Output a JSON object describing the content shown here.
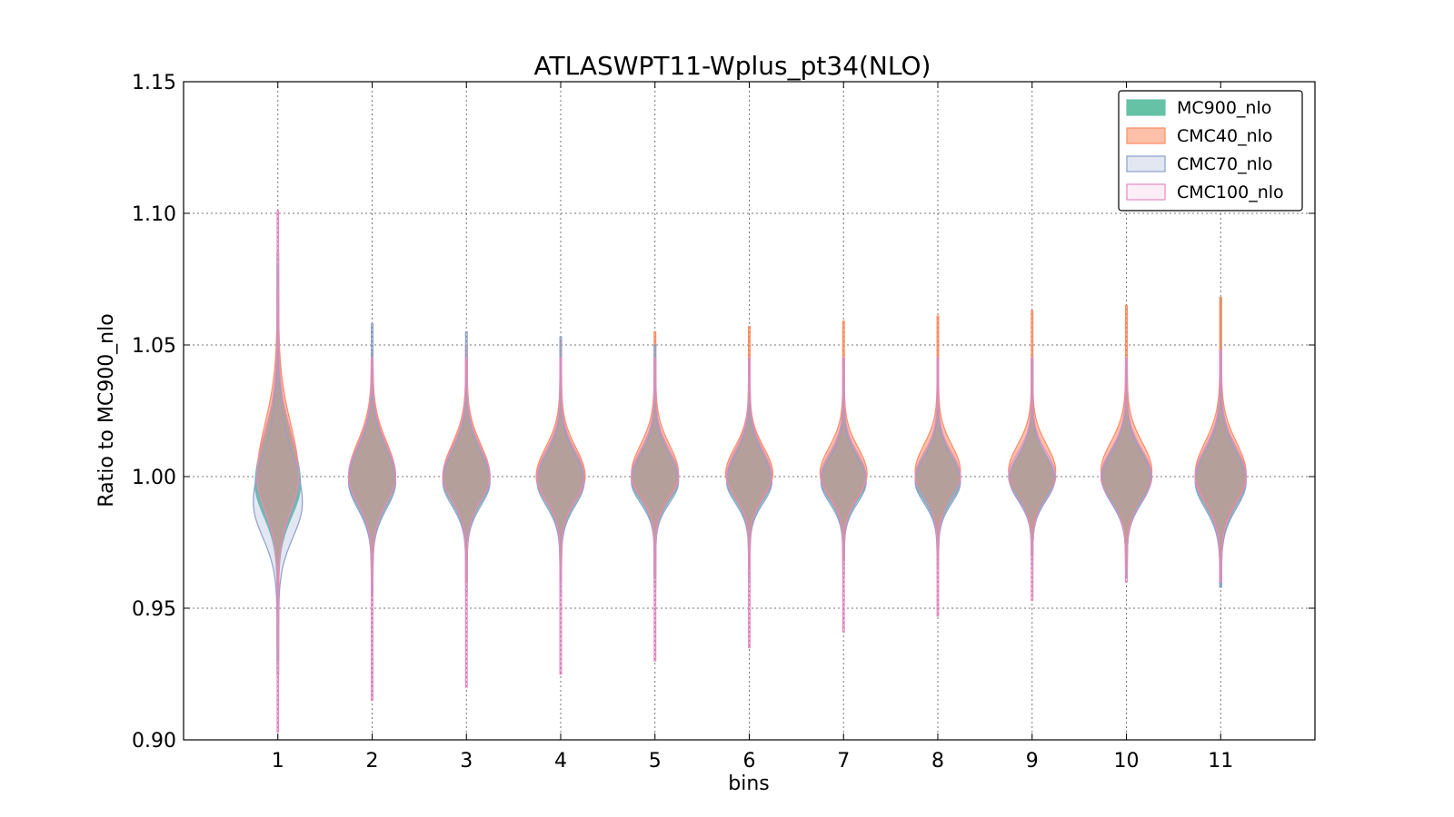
{
  "chart_data": {
    "type": "violin",
    "title": "ATLASWPT11-Wplus_pt34(NLO)",
    "xlabel": "bins",
    "ylabel": "Ratio to MC900_nlo",
    "ylim": [
      0.9,
      1.15
    ],
    "xlim": [
      0,
      12
    ],
    "yticks": [
      "0.90",
      "0.95",
      "1.00",
      "1.05",
      "1.10",
      "1.15"
    ],
    "xticks": [
      "1",
      "2",
      "3",
      "4",
      "5",
      "6",
      "7",
      "8",
      "9",
      "10",
      "11"
    ],
    "grid": true,
    "legend_position": "top-right",
    "series": [
      {
        "name": "MC900_nlo",
        "fill": "#66c2a5",
        "fill_opacity": 1.0,
        "stroke": "#66c2a5",
        "violins": [
          {
            "bin": 1,
            "min": 0.93,
            "max": 1.08,
            "center": 0.997,
            "halfwidth": 0.24,
            "spread_up": 0.018,
            "spread_down": 0.012
          },
          {
            "bin": 2,
            "min": 0.955,
            "max": 1.045,
            "center": 0.999,
            "halfwidth": 0.25,
            "spread_up": 0.012,
            "spread_down": 0.01
          },
          {
            "bin": 3,
            "min": 0.96,
            "max": 1.045,
            "center": 0.999,
            "halfwidth": 0.25,
            "spread_up": 0.011,
            "spread_down": 0.009
          },
          {
            "bin": 4,
            "min": 0.96,
            "max": 1.045,
            "center": 0.999,
            "halfwidth": 0.25,
            "spread_up": 0.01,
            "spread_down": 0.009
          },
          {
            "bin": 5,
            "min": 0.962,
            "max": 1.045,
            "center": 0.999,
            "halfwidth": 0.25,
            "spread_up": 0.01,
            "spread_down": 0.008
          },
          {
            "bin": 6,
            "min": 0.965,
            "max": 1.045,
            "center": 0.999,
            "halfwidth": 0.24,
            "spread_up": 0.01,
            "spread_down": 0.008
          },
          {
            "bin": 7,
            "min": 0.968,
            "max": 1.045,
            "center": 0.999,
            "halfwidth": 0.24,
            "spread_up": 0.009,
            "spread_down": 0.008
          },
          {
            "bin": 8,
            "min": 0.97,
            "max": 1.045,
            "center": 0.999,
            "halfwidth": 0.24,
            "spread_up": 0.009,
            "spread_down": 0.008
          },
          {
            "bin": 9,
            "min": 0.97,
            "max": 1.045,
            "center": 0.999,
            "halfwidth": 0.24,
            "spread_up": 0.009,
            "spread_down": 0.008
          },
          {
            "bin": 10,
            "min": 0.962,
            "max": 1.045,
            "center": 1.0,
            "halfwidth": 0.27,
            "spread_up": 0.01,
            "spread_down": 0.009
          },
          {
            "bin": 11,
            "min": 0.958,
            "max": 1.068,
            "center": 0.999,
            "halfwidth": 0.27,
            "spread_up": 0.011,
            "spread_down": 0.01
          }
        ]
      },
      {
        "name": "CMC40_nlo",
        "fill": "#fc8d62",
        "fill_opacity": 0.55,
        "stroke": "#fc8d62",
        "violins": [
          {
            "bin": 1,
            "min": 0.935,
            "max": 1.07,
            "center": 1.0,
            "halfwidth": 0.22,
            "spread_up": 0.02,
            "spread_down": 0.013
          },
          {
            "bin": 2,
            "min": 0.96,
            "max": 1.047,
            "center": 1.0,
            "halfwidth": 0.25,
            "spread_up": 0.013,
            "spread_down": 0.01
          },
          {
            "bin": 3,
            "min": 0.96,
            "max": 1.05,
            "center": 1.0,
            "halfwidth": 0.25,
            "spread_up": 0.012,
            "spread_down": 0.009
          },
          {
            "bin": 4,
            "min": 0.96,
            "max": 1.052,
            "center": 1.0,
            "halfwidth": 0.26,
            "spread_up": 0.011,
            "spread_down": 0.009
          },
          {
            "bin": 5,
            "min": 0.963,
            "max": 1.055,
            "center": 1.001,
            "halfwidth": 0.25,
            "spread_up": 0.011,
            "spread_down": 0.008
          },
          {
            "bin": 6,
            "min": 0.965,
            "max": 1.057,
            "center": 1.001,
            "halfwidth": 0.25,
            "spread_up": 0.01,
            "spread_down": 0.008
          },
          {
            "bin": 7,
            "min": 0.968,
            "max": 1.059,
            "center": 1.001,
            "halfwidth": 0.25,
            "spread_up": 0.01,
            "spread_down": 0.008
          },
          {
            "bin": 8,
            "min": 0.97,
            "max": 1.061,
            "center": 1.002,
            "halfwidth": 0.24,
            "spread_up": 0.01,
            "spread_down": 0.008
          },
          {
            "bin": 9,
            "min": 0.97,
            "max": 1.063,
            "center": 1.002,
            "halfwidth": 0.25,
            "spread_up": 0.01,
            "spread_down": 0.008
          },
          {
            "bin": 10,
            "min": 0.965,
            "max": 1.065,
            "center": 1.002,
            "halfwidth": 0.27,
            "spread_up": 0.011,
            "spread_down": 0.009
          },
          {
            "bin": 11,
            "min": 0.96,
            "max": 1.068,
            "center": 1.001,
            "halfwidth": 0.27,
            "spread_up": 0.012,
            "spread_down": 0.01
          }
        ]
      },
      {
        "name": "CMC70_nlo",
        "fill": "#8da0cb",
        "fill_opacity": 0.25,
        "stroke": "#8da0cb",
        "violins": [
          {
            "bin": 1,
            "min": 0.925,
            "max": 1.085,
            "center": 0.99,
            "halfwidth": 0.26,
            "spread_up": 0.018,
            "spread_down": 0.013
          },
          {
            "bin": 2,
            "min": 0.955,
            "max": 1.058,
            "center": 0.998,
            "halfwidth": 0.25,
            "spread_up": 0.012,
            "spread_down": 0.01
          },
          {
            "bin": 3,
            "min": 0.955,
            "max": 1.055,
            "center": 0.998,
            "halfwidth": 0.25,
            "spread_up": 0.011,
            "spread_down": 0.009
          },
          {
            "bin": 4,
            "min": 0.955,
            "max": 1.053,
            "center": 0.998,
            "halfwidth": 0.25,
            "spread_up": 0.01,
            "spread_down": 0.009
          },
          {
            "bin": 5,
            "min": 0.958,
            "max": 1.05,
            "center": 0.998,
            "halfwidth": 0.25,
            "spread_up": 0.01,
            "spread_down": 0.008
          },
          {
            "bin": 6,
            "min": 0.96,
            "max": 1.045,
            "center": 0.998,
            "halfwidth": 0.24,
            "spread_up": 0.01,
            "spread_down": 0.008
          },
          {
            "bin": 7,
            "min": 0.963,
            "max": 1.045,
            "center": 0.998,
            "halfwidth": 0.24,
            "spread_up": 0.009,
            "spread_down": 0.008
          },
          {
            "bin": 8,
            "min": 0.965,
            "max": 1.045,
            "center": 0.998,
            "halfwidth": 0.24,
            "spread_up": 0.009,
            "spread_down": 0.008
          },
          {
            "bin": 9,
            "min": 0.965,
            "max": 1.045,
            "center": 0.999,
            "halfwidth": 0.24,
            "spread_up": 0.009,
            "spread_down": 0.008
          },
          {
            "bin": 10,
            "min": 0.962,
            "max": 1.045,
            "center": 0.999,
            "halfwidth": 0.26,
            "spread_up": 0.01,
            "spread_down": 0.009
          },
          {
            "bin": 11,
            "min": 0.958,
            "max": 1.048,
            "center": 0.998,
            "halfwidth": 0.27,
            "spread_up": 0.011,
            "spread_down": 0.01
          }
        ]
      },
      {
        "name": "CMC100_nlo",
        "fill": "#e78ac3",
        "fill_opacity": 0.15,
        "stroke": "#e78ac3",
        "violins": [
          {
            "bin": 1,
            "min": 0.903,
            "max": 1.101,
            "center": 1.0,
            "halfwidth": 0.22,
            "spread_up": 0.017,
            "spread_down": 0.013
          },
          {
            "bin": 2,
            "min": 0.915,
            "max": 1.045,
            "center": 1.0,
            "halfwidth": 0.25,
            "spread_up": 0.012,
            "spread_down": 0.01
          },
          {
            "bin": 3,
            "min": 0.92,
            "max": 1.045,
            "center": 1.0,
            "halfwidth": 0.25,
            "spread_up": 0.011,
            "spread_down": 0.009
          },
          {
            "bin": 4,
            "min": 0.925,
            "max": 1.045,
            "center": 1.0,
            "halfwidth": 0.25,
            "spread_up": 0.01,
            "spread_down": 0.009
          },
          {
            "bin": 5,
            "min": 0.93,
            "max": 1.045,
            "center": 1.0,
            "halfwidth": 0.25,
            "spread_up": 0.01,
            "spread_down": 0.008
          },
          {
            "bin": 6,
            "min": 0.935,
            "max": 1.045,
            "center": 1.0,
            "halfwidth": 0.24,
            "spread_up": 0.01,
            "spread_down": 0.008
          },
          {
            "bin": 7,
            "min": 0.941,
            "max": 1.045,
            "center": 1.0,
            "halfwidth": 0.24,
            "spread_up": 0.009,
            "spread_down": 0.008
          },
          {
            "bin": 8,
            "min": 0.947,
            "max": 1.045,
            "center": 1.0,
            "halfwidth": 0.24,
            "spread_up": 0.009,
            "spread_down": 0.008
          },
          {
            "bin": 9,
            "min": 0.953,
            "max": 1.045,
            "center": 1.0,
            "halfwidth": 0.25,
            "spread_up": 0.009,
            "spread_down": 0.008
          },
          {
            "bin": 10,
            "min": 0.96,
            "max": 1.045,
            "center": 1.0,
            "halfwidth": 0.27,
            "spread_up": 0.01,
            "spread_down": 0.009
          },
          {
            "bin": 11,
            "min": 0.96,
            "max": 1.048,
            "center": 1.0,
            "halfwidth": 0.27,
            "spread_up": 0.011,
            "spread_down": 0.01
          }
        ]
      }
    ]
  }
}
